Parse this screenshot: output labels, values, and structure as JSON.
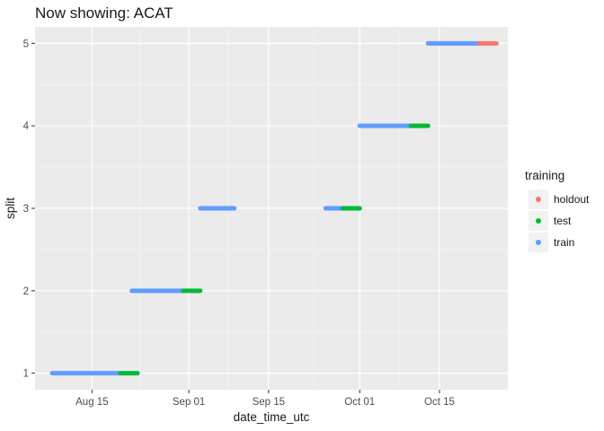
{
  "chart_data": {
    "type": "scatter",
    "title": "Now showing: ACAT",
    "xlabel": "date_time_utc",
    "ylabel": "split",
    "x_type": "date",
    "xlim": [
      "2022-08-05",
      "2022-10-27"
    ],
    "ylim": [
      0.8,
      5.2
    ],
    "x_ticks": [
      {
        "value": "2022-08-15",
        "label": "Aug 15"
      },
      {
        "value": "2022-09-01",
        "label": "Sep 01"
      },
      {
        "value": "2022-09-15",
        "label": "Sep 15"
      },
      {
        "value": "2022-10-01",
        "label": "Oct 01"
      },
      {
        "value": "2022-10-15",
        "label": "Oct 15"
      }
    ],
    "y_ticks": [
      1,
      2,
      3,
      4,
      5
    ],
    "grid": true,
    "legend": {
      "title": "training",
      "position": "right",
      "entries": [
        "holdout",
        "test",
        "train"
      ]
    },
    "colors": {
      "holdout": "#F8766D",
      "test": "#00BA38",
      "train": "#619CFF"
    },
    "series": [
      {
        "name": "train",
        "segments": [
          {
            "split": 1,
            "start": "2022-08-08",
            "end": "2022-08-20"
          },
          {
            "split": 2,
            "start": "2022-08-22",
            "end": "2022-08-31"
          },
          {
            "split": 3,
            "start": "2022-09-03",
            "end": "2022-09-09"
          },
          {
            "split": 3,
            "start": "2022-09-25",
            "end": "2022-09-28"
          },
          {
            "split": 4,
            "start": "2022-10-01",
            "end": "2022-10-10"
          },
          {
            "split": 5,
            "start": "2022-10-13",
            "end": "2022-10-22"
          }
        ]
      },
      {
        "name": "test",
        "segments": [
          {
            "split": 1,
            "start": "2022-08-20",
            "end": "2022-08-23"
          },
          {
            "split": 2,
            "start": "2022-08-31",
            "end": "2022-09-03"
          },
          {
            "split": 3,
            "start": "2022-09-28",
            "end": "2022-10-01"
          },
          {
            "split": 4,
            "start": "2022-10-10",
            "end": "2022-10-13"
          }
        ]
      },
      {
        "name": "holdout",
        "segments": [
          {
            "split": 5,
            "start": "2022-10-22",
            "end": "2022-10-25"
          }
        ]
      }
    ]
  }
}
